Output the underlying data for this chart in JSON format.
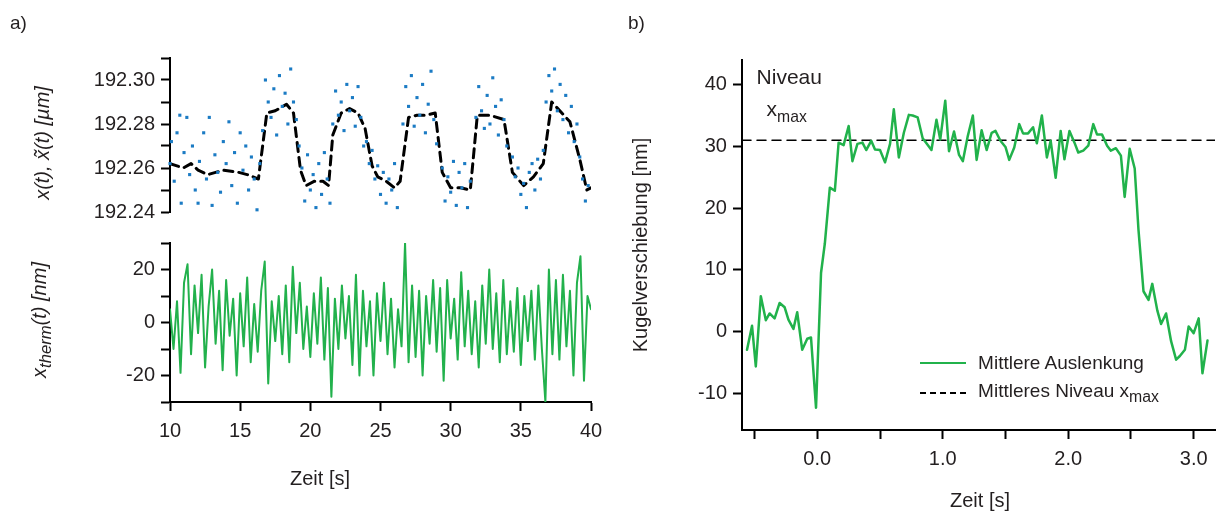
{
  "chart_data": [
    {
      "type": "scatter",
      "ylabel": "x(t), x̃(t) [µm]",
      "annotations": [
        "a)"
      ],
      "tick_labels": "y",
      "xlim": [
        10,
        40
      ],
      "ylim": [
        192.24,
        192.31
      ],
      "yticks": [
        {
          "value": 192.24,
          "label": "192.24"
        },
        {
          "value": 192.25,
          "label": null
        },
        {
          "value": 192.26,
          "label": "192.26"
        },
        {
          "value": 192.27,
          "label": null
        },
        {
          "value": 192.28,
          "label": "192.28"
        },
        {
          "value": 192.29,
          "label": null
        },
        {
          "value": 192.3,
          "label": "192.30"
        },
        {
          "value": 192.31,
          "label": null
        }
      ],
      "series": [
        {
          "color": "#1b7bc4",
          "marker": "square",
          "x": [
            10,
            10.1,
            10.3,
            10.5,
            10.7,
            10.8,
            11,
            11.2,
            11.4,
            11.6,
            11.8,
            12,
            12.1,
            12.4,
            12.6,
            12.8,
            13,
            13.2,
            13.4,
            13.6,
            13.8,
            14,
            14.2,
            14.4,
            14.6,
            14.8,
            15,
            15.2,
            15.4,
            15.6,
            15.8,
            16,
            16.2,
            16.4,
            16.6,
            16.8,
            17,
            17.2,
            17.4,
            17.6,
            17.8,
            18,
            18.2,
            18.4,
            18.6,
            18.8,
            19,
            19.2,
            19.4,
            19.6,
            19.8,
            20,
            20.2,
            20.4,
            20.6,
            20.8,
            21,
            21.2,
            21.4,
            21.6,
            21.8,
            22,
            22.2,
            22.4,
            22.6,
            22.8,
            23,
            23.2,
            23.4,
            23.6,
            23.8,
            24,
            24.2,
            24.4,
            24.6,
            24.8,
            25,
            25.2,
            25.4,
            25.6,
            25.8,
            26,
            26.2,
            26.6,
            26.8,
            27,
            27.2,
            27.4,
            27.6,
            27.8,
            28,
            28.2,
            28.4,
            28.6,
            28.8,
            29,
            29.4,
            29.6,
            29.8,
            30,
            30.2,
            30.4,
            30.6,
            30.8,
            31,
            31.2,
            31.4,
            31.8,
            32,
            32.2,
            32.4,
            32.6,
            32.8,
            33,
            33.2,
            33.4,
            33.6,
            33.8,
            34,
            34.4,
            34.6,
            34.8,
            35,
            35.2,
            35.4,
            35.6,
            35.8,
            36,
            36.2,
            36.4,
            36.6,
            36.8,
            37,
            37.2,
            37.4,
            37.6,
            37.8,
            38,
            38.2,
            38.4,
            38.6,
            38.8,
            39,
            39.2,
            39.4,
            39.6,
            39.8
          ],
          "values": [
            192.262,
            192.272,
            192.254,
            192.276,
            192.284,
            192.244,
            192.267,
            192.283,
            192.257,
            192.27,
            192.25,
            192.244,
            192.263,
            192.276,
            192.255,
            192.283,
            192.243,
            192.266,
            192.258,
            192.249,
            192.272,
            192.262,
            192.281,
            192.252,
            192.267,
            192.244,
            192.276,
            192.259,
            192.27,
            192.25,
            192.265,
            192.255,
            192.241,
            192.262,
            192.277,
            192.3,
            192.29,
            192.283,
            192.296,
            192.275,
            192.302,
            192.288,
            192.294,
            192.28,
            192.305,
            192.29,
            192.282,
            192.27,
            192.26,
            192.245,
            192.266,
            192.25,
            192.257,
            192.242,
            192.262,
            192.248,
            192.267,
            192.255,
            192.244,
            192.28,
            192.295,
            192.284,
            192.29,
            192.277,
            192.298,
            192.286,
            192.292,
            192.279,
            192.297,
            192.283,
            192.27,
            192.272,
            192.262,
            192.268,
            192.255,
            192.261,
            192.248,
            192.258,
            192.244,
            192.255,
            192.25,
            192.262,
            192.242,
            192.28,
            192.297,
            192.288,
            192.302,
            192.279,
            192.292,
            192.284,
            192.298,
            192.276,
            192.289,
            192.304,
            192.282,
            192.271,
            192.26,
            192.245,
            192.256,
            192.249,
            192.263,
            192.243,
            192.258,
            192.251,
            192.262,
            192.242,
            192.254,
            192.283,
            192.297,
            192.286,
            192.278,
            192.293,
            192.28,
            192.301,
            192.288,
            192.275,
            192.291,
            192.282,
            192.27,
            192.265,
            192.256,
            192.26,
            192.248,
            192.253,
            192.242,
            192.258,
            192.262,
            192.25,
            192.264,
            192.255,
            192.268,
            192.29,
            192.302,
            192.295,
            192.305,
            192.286,
            192.298,
            192.282,
            192.293,
            192.276,
            192.288,
            192.272,
            192.28,
            192.265,
            192.255,
            192.245,
            192.252
          ]
        },
        {
          "type": "line",
          "color": "#000000",
          "line_style": "dashed",
          "x": [
            10,
            10.95,
            11.5,
            12,
            12.7,
            13.8,
            14.9,
            15.5,
            16.3,
            16.9,
            17.5,
            18.3,
            18.8,
            19.3,
            19.7,
            20.3,
            20.9,
            21.3,
            21.6,
            22.2,
            22.8,
            23.4,
            23.9,
            24.4,
            24.8,
            25.4,
            26,
            26.4,
            27,
            27.6,
            28.2,
            28.9,
            29.4,
            30,
            30.7,
            31.4,
            31.9,
            32.8,
            33.8,
            34.4,
            35.2,
            35.9,
            36.6,
            37.2,
            38.5,
            39.2,
            39.7,
            40
          ],
          "values": [
            192.262,
            192.26,
            192.262,
            192.259,
            192.257,
            192.259,
            192.258,
            192.257,
            192.255,
            192.285,
            192.286,
            192.289,
            192.285,
            192.259,
            192.252,
            192.254,
            192.254,
            192.252,
            192.275,
            192.285,
            192.287,
            192.285,
            192.278,
            192.261,
            192.256,
            192.254,
            192.251,
            192.254,
            192.283,
            192.284,
            192.284,
            192.285,
            192.258,
            192.251,
            192.251,
            192.25,
            192.284,
            192.284,
            192.282,
            192.258,
            192.252,
            192.256,
            192.262,
            192.29,
            192.281,
            192.264,
            192.25,
            192.251
          ]
        }
      ]
    },
    {
      "type": "line",
      "xlabel": "Zeit [s]",
      "ylabel": "x$_{therm}$(t) [nm]",
      "xlim": [
        10,
        40
      ],
      "ylim": [
        -30,
        30
      ],
      "xticks": [
        10,
        15,
        20,
        25,
        30,
        35,
        40
      ],
      "yticks": [
        {
          "value": -30,
          "label": null
        },
        -20,
        {
          "value": -10,
          "label": null
        },
        0,
        {
          "value": 10,
          "label": null
        },
        20,
        {
          "value": 30,
          "label": null
        }
      ],
      "series": [
        {
          "color": "#22b14c",
          "x": [
            10,
            10.25,
            10.5,
            10.75,
            11,
            11.25,
            11.5,
            11.75,
            12,
            12.25,
            12.5,
            12.75,
            13,
            13.25,
            13.5,
            13.75,
            14,
            14.25,
            14.5,
            14.75,
            15,
            15.25,
            15.5,
            15.75,
            16,
            16.25,
            16.5,
            16.75,
            17,
            17.25,
            17.5,
            17.75,
            18,
            18.25,
            18.5,
            18.75,
            19,
            19.25,
            19.5,
            19.75,
            20,
            20.25,
            20.5,
            20.75,
            21,
            21.25,
            21.5,
            21.75,
            22,
            22.25,
            22.5,
            22.75,
            23,
            23.25,
            23.5,
            23.75,
            24,
            24.25,
            24.5,
            24.75,
            25,
            25.25,
            25.5,
            25.75,
            26,
            26.25,
            26.5,
            26.75,
            27,
            27.25,
            27.5,
            27.75,
            28,
            28.25,
            28.5,
            28.75,
            29,
            29.25,
            29.5,
            29.75,
            30,
            30.25,
            30.5,
            30.75,
            31,
            31.25,
            31.5,
            31.75,
            32,
            32.25,
            32.5,
            32.75,
            33,
            33.25,
            33.5,
            33.75,
            34,
            34.25,
            34.5,
            34.75,
            35,
            35.25,
            35.5,
            35.75,
            36,
            36.25,
            36.5,
            36.75,
            37,
            37.25,
            37.5,
            37.75,
            38,
            38.25,
            38.5,
            38.75,
            39,
            39.25,
            39.5,
            39.75,
            40
          ],
          "values": [
            5,
            -10,
            8,
            -19,
            15,
            22,
            -12,
            14,
            -4,
            18,
            -17,
            6,
            20,
            -8,
            12,
            -18,
            16,
            -5,
            9,
            -20,
            11,
            -9,
            17,
            -15,
            7,
            -11,
            12,
            23,
            -23,
            8,
            -7,
            10,
            -12,
            14,
            -15,
            21,
            -4,
            15,
            -10,
            6,
            -13,
            11,
            -8,
            17,
            -14,
            13,
            -28,
            9,
            -10,
            14,
            -6,
            10,
            -16,
            18,
            -20,
            12,
            -9,
            8,
            -20,
            11,
            -7,
            15,
            -12,
            9,
            -17,
            5,
            -9,
            30,
            -15,
            14,
            -13,
            12,
            -20,
            10,
            -8,
            16,
            -11,
            13,
            -22,
            16,
            -6,
            9,
            -14,
            19,
            -9,
            12,
            -12,
            8,
            -17,
            14,
            -8,
            20,
            -10,
            11,
            -15,
            16,
            -12,
            8,
            -11,
            13,
            -16,
            10,
            -7,
            12,
            -14,
            14,
            -10,
            -30,
            20,
            -12,
            16,
            -14,
            18,
            -9,
            12,
            -20,
            15,
            25,
            -22,
            10,
            5
          ]
        }
      ]
    },
    {
      "type": "line",
      "xlabel": "Zeit [s]",
      "ylabel": "Kugelverschiebung [nm]",
      "annotations": [
        "b)",
        {
          "text": "Niveau x$_{max}$",
          "x": -0.5,
          "y": 31
        }
      ],
      "legend": "bottom right",
      "xlim": [
        -0.6,
        3.17
      ],
      "ylim": [
        -16,
        44
      ],
      "xticks": [
        {
          "value": -0.5,
          "label": null
        },
        {
          "value": 0,
          "label": "0.0"
        },
        {
          "value": 0.5,
          "label": null
        },
        {
          "value": 1,
          "label": "1.0"
        },
        {
          "value": 1.5,
          "label": null
        },
        {
          "value": 2,
          "label": "2.0"
        },
        {
          "value": 2.5,
          "label": null
        },
        {
          "value": 3,
          "label": "3.0"
        }
      ],
      "yticks": [
        -10,
        0,
        10,
        20,
        30,
        40
      ],
      "series": [
        {
          "name": "Mittlere Auslenkung",
          "color": "#21b24b",
          "x": [
            -0.56,
            -0.52,
            -0.49,
            -0.45,
            -0.41,
            -0.38,
            -0.34,
            -0.3,
            -0.26,
            -0.23,
            -0.19,
            -0.16,
            -0.12,
            -0.08,
            -0.05,
            -0.01,
            0.03,
            0.06,
            0.1,
            0.14,
            0.17,
            0.21,
            0.25,
            0.28,
            0.32,
            0.36,
            0.39,
            0.43,
            0.46,
            0.5,
            0.54,
            0.58,
            0.61,
            0.65,
            0.69,
            0.73,
            0.76,
            0.8,
            0.84,
            0.87,
            0.91,
            0.95,
            0.98,
            1.02,
            1.05,
            1.09,
            1.13,
            1.16,
            1.2,
            1.24,
            1.27,
            1.31,
            1.35,
            1.39,
            1.42,
            1.46,
            1.5,
            1.53,
            1.57,
            1.61,
            1.64,
            1.68,
            1.72,
            1.75,
            1.79,
            1.83,
            1.86,
            1.9,
            1.94,
            1.97,
            2.01,
            2.05,
            2.08,
            2.12,
            2.16,
            2.2,
            2.23,
            2.27,
            2.31,
            2.34,
            2.38,
            2.42,
            2.45,
            2.49,
            2.53,
            2.56,
            2.6,
            2.64,
            2.67,
            2.71,
            2.74,
            2.78,
            2.82,
            2.86,
            2.89,
            2.93,
            2.96,
            3,
            3.04,
            3.07,
            3.11
          ],
          "values": [
            -3,
            0.9,
            -5.7,
            5.7,
            1.8,
            2.9,
            2.1,
            4.6,
            3.9,
            1.9,
            0.4,
            3.1,
            -3,
            -1.2,
            -1,
            -12.4,
            9.5,
            14.2,
            23.3,
            22.8,
            30.6,
            30.2,
            33.3,
            27.6,
            30.4,
            30.6,
            29.4,
            30.9,
            29.5,
            29.4,
            27.4,
            30.4,
            36,
            28.2,
            32.2,
            35.1,
            35,
            34.7,
            31.3,
            30.5,
            29.4,
            34.3,
            31.1,
            37.4,
            29.2,
            32.4,
            28.6,
            27.6,
            31.7,
            35,
            27.8,
            32.6,
            29.4,
            32.2,
            32.5,
            30.9,
            29.9,
            27.8,
            29.8,
            33.6,
            32.1,
            32.1,
            33.1,
            30.5,
            35,
            28.2,
            30.9,
            24.9,
            32.5,
            27.9,
            32.5,
            30.6,
            29,
            29.3,
            30.1,
            33.6,
            31.9,
            31.9,
            30.1,
            29.3,
            29.7,
            28.5,
            21.8,
            29.6,
            26.4,
            16.5,
            6.5,
            5.1,
            7.7,
            3.4,
            1.2,
            2.9,
            -1.6,
            -4.6,
            -4,
            -3,
            0.8,
            -0.3,
            2.1,
            -6.8,
            -1.5
          ]
        },
        {
          "name": "Mittleres Niveau x$_{max}$",
          "color": "#000000",
          "line_style": "dashed",
          "x": [
            -0.6,
            3.17
          ],
          "values": [
            31,
            31
          ]
        }
      ]
    }
  ]
}
